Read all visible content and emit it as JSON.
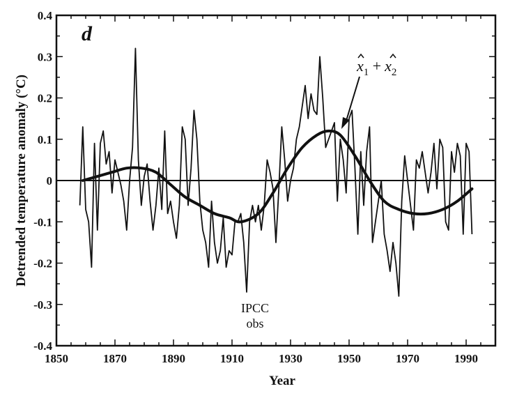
{
  "chart_data": {
    "type": "line",
    "panel_label": "d",
    "xlabel": "Year",
    "ylabel": "Detrended temperature anomaly (°C)",
    "xlim": [
      1850,
      2000
    ],
    "ylim": [
      -0.4,
      0.4
    ],
    "xticks": [
      1850,
      1870,
      1890,
      1910,
      1930,
      1950,
      1970,
      1990
    ],
    "yticks": [
      0.4,
      0.3,
      0.2,
      0.1,
      0,
      -0.1,
      -0.2,
      -0.3,
      -0.4
    ],
    "ytick_labels": [
      "0.4",
      "0.3",
      "0.2",
      "0.1",
      "0",
      "-0.1",
      "-0.2",
      "-0.3",
      "-0.4"
    ],
    "zero_line": true,
    "grid": false,
    "annotations": {
      "obs_label_line1": "IPCC",
      "obs_label_line2": "obs",
      "fit_label_x1": "x",
      "fit_label_sub1": "1",
      "fit_label_plus": "+",
      "fit_label_x2": "x",
      "fit_label_sub2": "2"
    },
    "series": [
      {
        "x": [
          1858,
          1859,
          1860,
          1861,
          1862,
          1863,
          1864,
          1865,
          1866,
          1867,
          1868,
          1869,
          1870,
          1871,
          1872,
          1873,
          1874,
          1875,
          1876,
          1877,
          1878,
          1879,
          1880,
          1881,
          1882,
          1883,
          1884,
          1885,
          1886,
          1887,
          1888,
          1889,
          1890,
          1891,
          1892,
          1893,
          1894,
          1895,
          1896,
          1897,
          1898,
          1899,
          1900,
          1901,
          1902,
          1903,
          1904,
          1905,
          1906,
          1907,
          1908,
          1909,
          1910,
          1911,
          1912,
          1913,
          1914,
          1915,
          1916,
          1917,
          1918,
          1919,
          1920,
          1921,
          1922,
          1923,
          1924,
          1925,
          1926,
          1927,
          1928,
          1929,
          1930,
          1931,
          1932,
          1933,
          1934,
          1935,
          1936,
          1937,
          1938,
          1939,
          1940,
          1941,
          1942,
          1943,
          1944,
          1945,
          1946,
          1947,
          1948,
          1949,
          1950,
          1951,
          1952,
          1953,
          1954,
          1955,
          1956,
          1957,
          1958,
          1959,
          1960,
          1961,
          1962,
          1963,
          1964,
          1965,
          1966,
          1967,
          1968,
          1969,
          1970,
          1971,
          1972,
          1973,
          1974,
          1975,
          1976,
          1977,
          1978,
          1979,
          1980,
          1981,
          1982,
          1983,
          1984,
          1985,
          1986,
          1987,
          1988,
          1989,
          1990,
          1991,
          1992
        ],
        "y": [
          -0.06,
          0.13,
          -0.07,
          -0.1,
          -0.21,
          0.09,
          -0.12,
          0.09,
          0.12,
          0.04,
          0.07,
          -0.03,
          0.05,
          0.02,
          -0.01,
          -0.05,
          -0.12,
          0.0,
          0.08,
          0.32,
          0.05,
          -0.06,
          0.01,
          0.04,
          -0.05,
          -0.12,
          -0.06,
          0.03,
          -0.07,
          0.12,
          -0.08,
          -0.05,
          -0.1,
          -0.14,
          -0.06,
          0.13,
          0.1,
          -0.06,
          0.03,
          0.17,
          0.1,
          -0.05,
          -0.12,
          -0.15,
          -0.21,
          -0.05,
          -0.15,
          -0.2,
          -0.17,
          -0.09,
          -0.21,
          -0.17,
          -0.18,
          -0.1,
          -0.1,
          -0.08,
          -0.15,
          -0.27,
          -0.1,
          -0.06,
          -0.1,
          -0.06,
          -0.12,
          -0.06,
          0.05,
          0.02,
          -0.02,
          -0.15,
          -0.02,
          0.13,
          0.05,
          -0.05,
          0.0,
          0.03,
          0.1,
          0.13,
          0.18,
          0.23,
          0.15,
          0.21,
          0.17,
          0.16,
          0.3,
          0.2,
          0.08,
          0.1,
          0.12,
          0.14,
          -0.05,
          0.1,
          0.05,
          -0.03,
          0.15,
          0.17,
          0.03,
          -0.13,
          0.07,
          -0.06,
          0.07,
          0.13,
          -0.15,
          -0.1,
          -0.05,
          0.0,
          -0.13,
          -0.17,
          -0.22,
          -0.15,
          -0.2,
          -0.28,
          -0.05,
          0.06,
          0.0,
          -0.06,
          -0.12,
          0.05,
          0.03,
          0.07,
          0.02,
          -0.03,
          0.02,
          0.09,
          -0.02,
          0.1,
          0.08,
          -0.1,
          -0.12,
          0.07,
          0.02,
          0.09,
          0.06,
          -0.13,
          0.09,
          0.07,
          -0.13
        ]
      },
      {
        "x": [
          1859,
          1864,
          1869,
          1874,
          1879,
          1884,
          1889,
          1894,
          1899,
          1904,
          1909,
          1913,
          1919,
          1924,
          1929,
          1934,
          1939,
          1943,
          1947,
          1952,
          1957,
          1962,
          1967,
          1972,
          1977,
          1982,
          1987,
          1992
        ],
        "y": [
          0.0,
          0.01,
          0.02,
          0.03,
          0.03,
          0.02,
          -0.01,
          -0.04,
          -0.06,
          -0.08,
          -0.09,
          -0.1,
          -0.08,
          -0.03,
          0.03,
          0.08,
          0.11,
          0.12,
          0.11,
          0.06,
          0.0,
          -0.05,
          -0.07,
          -0.08,
          -0.08,
          -0.07,
          -0.05,
          -0.02
        ]
      }
    ]
  }
}
